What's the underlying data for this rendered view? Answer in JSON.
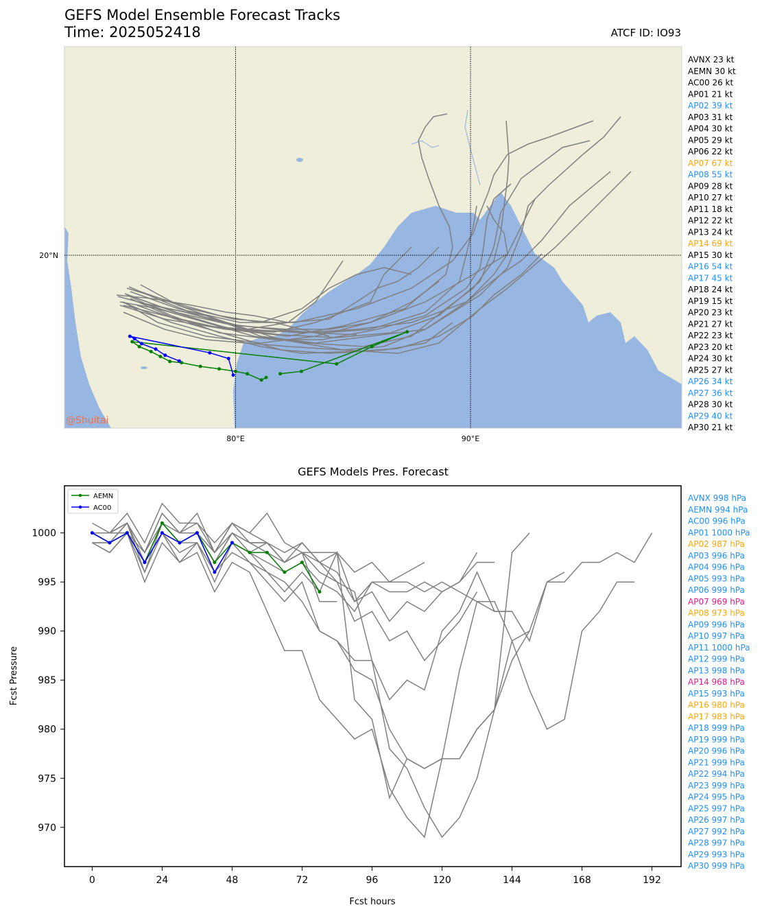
{
  "header": {
    "title": "GEFS Model Ensemble Forecast Tracks",
    "time": "Time: 2025052418",
    "atcf": "ATCF ID: IO93"
  },
  "map": {
    "lat_label": "20°N",
    "lon_labels": [
      "80°E",
      "90°E"
    ],
    "watermark": "@Shuitai",
    "colors": {
      "land": "#efeedb",
      "ocean": "#98b6e2",
      "track": "#808080",
      "aemn": "#008000",
      "ac00": "#0000ff",
      "watermark": "#e8734d"
    },
    "tracks": {
      "AEMN": [
        [
          81.3,
          15.05
        ],
        [
          81.1,
          14.95
        ],
        [
          80.5,
          15.2
        ],
        [
          80.0,
          15.3
        ],
        [
          79.3,
          15.4
        ],
        [
          78.5,
          15.5
        ],
        [
          77.7,
          15.65
        ],
        [
          77.2,
          15.7
        ],
        [
          76.8,
          15.9
        ],
        [
          76.4,
          16.1
        ],
        [
          75.9,
          16.3
        ],
        [
          75.6,
          16.5
        ],
        [
          84.3,
          15.6
        ],
        [
          85.8,
          16.3
        ],
        [
          87.3,
          16.9
        ],
        [
          82.8,
          15.3
        ],
        [
          81.9,
          15.2
        ]
      ],
      "AC00": [
        [
          77.6,
          15.72
        ],
        [
          77.0,
          15.95
        ],
        [
          76.6,
          16.2
        ],
        [
          76.0,
          16.42
        ],
        [
          75.7,
          16.62
        ],
        [
          75.5,
          16.72
        ],
        [
          78.9,
          16.05
        ],
        [
          79.7,
          15.82
        ],
        [
          79.9,
          15.15
        ]
      ]
    }
  },
  "legend_top": [
    {
      "label": "AVNX 23 kt",
      "color": "#000000"
    },
    {
      "label": "AEMN 30 kt",
      "color": "#000000"
    },
    {
      "label": "AC00 26 kt",
      "color": "#000000"
    },
    {
      "label": "AP01 21 kt",
      "color": "#000000"
    },
    {
      "label": "AP02 39 kt",
      "color": "#1e90ff"
    },
    {
      "label": "AP03 31 kt",
      "color": "#000000"
    },
    {
      "label": "AP04 30 kt",
      "color": "#000000"
    },
    {
      "label": "AP05 29 kt",
      "color": "#000000"
    },
    {
      "label": "AP06 22 kt",
      "color": "#000000"
    },
    {
      "label": "AP07 67 kt",
      "color": "#ffa500"
    },
    {
      "label": "AP08 55 kt",
      "color": "#1e90ff"
    },
    {
      "label": "AP09 28 kt",
      "color": "#000000"
    },
    {
      "label": "AP10 27 kt",
      "color": "#000000"
    },
    {
      "label": "AP11 18 kt",
      "color": "#000000"
    },
    {
      "label": "AP12 22 kt",
      "color": "#000000"
    },
    {
      "label": "AP13 24 kt",
      "color": "#000000"
    },
    {
      "label": "AP14 69 kt",
      "color": "#ffa500"
    },
    {
      "label": "AP15 30 kt",
      "color": "#000000"
    },
    {
      "label": "AP16 54 kt",
      "color": "#1e90ff"
    },
    {
      "label": "AP17 45 kt",
      "color": "#1e90ff"
    },
    {
      "label": "AP18 24 kt",
      "color": "#000000"
    },
    {
      "label": "AP19 15 kt",
      "color": "#000000"
    },
    {
      "label": "AP20 23 kt",
      "color": "#000000"
    },
    {
      "label": "AP21 27 kt",
      "color": "#000000"
    },
    {
      "label": "AP22 23 kt",
      "color": "#000000"
    },
    {
      "label": "AP23 20 kt",
      "color": "#000000"
    },
    {
      "label": "AP24 30 kt",
      "color": "#000000"
    },
    {
      "label": "AP25 27 kt",
      "color": "#000000"
    },
    {
      "label": "AP26 34 kt",
      "color": "#1e90ff"
    },
    {
      "label": "AP27 36 kt",
      "color": "#1e90ff"
    },
    {
      "label": "AP28 30 kt",
      "color": "#000000"
    },
    {
      "label": "AP29 40 kt",
      "color": "#1e90ff"
    },
    {
      "label": "AP30 21 kt",
      "color": "#000000"
    }
  ],
  "legend_bottom": [
    {
      "label": "AVNX 998 hPa",
      "color": "#1e90ff"
    },
    {
      "label": "AEMN 994 hPa",
      "color": "#1e90ff"
    },
    {
      "label": "AC00 996 hPa",
      "color": "#1e90ff"
    },
    {
      "label": "AP01 1000 hPa",
      "color": "#1e90ff"
    },
    {
      "label": "AP02 987 hPa",
      "color": "#ffa500"
    },
    {
      "label": "AP03 996 hPa",
      "color": "#1e90ff"
    },
    {
      "label": "AP04 996 hPa",
      "color": "#1e90ff"
    },
    {
      "label": "AP05 993 hPa",
      "color": "#1e90ff"
    },
    {
      "label": "AP06 999 hPa",
      "color": "#1e90ff"
    },
    {
      "label": "AP07 969 hPa",
      "color": "#e6198c"
    },
    {
      "label": "AP08 973 hPa",
      "color": "#ffa500"
    },
    {
      "label": "AP09 996 hPa",
      "color": "#1e90ff"
    },
    {
      "label": "AP10 997 hPa",
      "color": "#1e90ff"
    },
    {
      "label": "AP11 1000 hPa",
      "color": "#1e90ff"
    },
    {
      "label": "AP12 999 hPa",
      "color": "#1e90ff"
    },
    {
      "label": "AP13 998 hPa",
      "color": "#1e90ff"
    },
    {
      "label": "AP14 968 hPa",
      "color": "#e6198c"
    },
    {
      "label": "AP15 993 hPa",
      "color": "#1e90ff"
    },
    {
      "label": "AP16 980 hPa",
      "color": "#ffa500"
    },
    {
      "label": "AP17 983 hPa",
      "color": "#ffa500"
    },
    {
      "label": "AP18 999 hPa",
      "color": "#1e90ff"
    },
    {
      "label": "AP19 999 hPa",
      "color": "#1e90ff"
    },
    {
      "label": "AP20 996 hPa",
      "color": "#1e90ff"
    },
    {
      "label": "AP21 999 hPa",
      "color": "#1e90ff"
    },
    {
      "label": "AP22 994 hPa",
      "color": "#1e90ff"
    },
    {
      "label": "AP23 999 hPa",
      "color": "#1e90ff"
    },
    {
      "label": "AP24 995 hPa",
      "color": "#1e90ff"
    },
    {
      "label": "AP25 997 hPa",
      "color": "#1e90ff"
    },
    {
      "label": "AP26 997 hPa",
      "color": "#1e90ff"
    },
    {
      "label": "AP27 992 hPa",
      "color": "#1e90ff"
    },
    {
      "label": "AP28 997 hPa",
      "color": "#1e90ff"
    },
    {
      "label": "AP29 993 hPa",
      "color": "#1e90ff"
    },
    {
      "label": "AP30 999 hPa",
      "color": "#1e90ff"
    }
  ],
  "chart_data": {
    "type": "line",
    "title": "GEFS Models Pres. Forecast",
    "xlabel": "Fcst hours",
    "ylabel": "Fcst Pressure",
    "xlim": [
      -9.5,
      202
    ],
    "ylim": [
      966,
      1004.8
    ],
    "xticks": [
      0,
      24,
      48,
      72,
      96,
      120,
      144,
      168,
      192
    ],
    "yticks": [
      970,
      975,
      980,
      985,
      990,
      995,
      1000
    ],
    "legend": [
      "AEMN",
      "AC00"
    ],
    "legend_placement": "top-left",
    "highlight_series": [
      {
        "name": "AEMN",
        "color": "#008000",
        "x": [
          0,
          6,
          12,
          18,
          24,
          30,
          36,
          42,
          48,
          54,
          60,
          66,
          72,
          78
        ],
        "y": [
          1000,
          999,
          1000,
          997,
          1001,
          999,
          1000,
          997,
          999,
          998,
          998,
          996,
          997,
          994
        ]
      },
      {
        "name": "AC00",
        "color": "#0000ff",
        "x": [
          0,
          6,
          12,
          18,
          24,
          30,
          36,
          42,
          48
        ],
        "y": [
          1000,
          999,
          1000,
          997,
          1000,
          999,
          1000,
          996,
          999
        ]
      }
    ],
    "series": [
      {
        "x": [
          0,
          6,
          12,
          18,
          24,
          30,
          36,
          42,
          48,
          54,
          60,
          66,
          72,
          78,
          84,
          90,
          96,
          102,
          108,
          114,
          120,
          126,
          132
        ],
        "y": [
          1000,
          1000,
          1001,
          998,
          1002,
          1000,
          1001,
          998,
          1000,
          999,
          999,
          997,
          998,
          996,
          995,
          991,
          992,
          989,
          990,
          987,
          989,
          991,
          994
        ]
      },
      {
        "x": [
          0,
          6,
          12,
          18,
          24,
          30,
          36,
          42,
          48,
          54,
          60,
          66,
          72,
          78,
          84,
          90,
          96,
          102,
          108,
          114,
          120,
          126,
          132,
          138,
          144
        ],
        "y": [
          999,
          999,
          1000,
          996,
          1000,
          998,
          999,
          995,
          999,
          998,
          996,
          995,
          993,
          990,
          989,
          987,
          987,
          983,
          985,
          984,
          990,
          992,
          996,
          992,
          992
        ]
      },
      {
        "x": [
          0,
          6,
          12,
          18,
          24,
          30,
          36,
          42,
          48,
          54,
          60,
          66,
          72,
          78,
          84,
          90,
          96,
          102,
          108,
          114,
          120,
          126,
          132,
          138,
          144,
          150,
          156,
          162
        ],
        "y": [
          1001,
          1000,
          1002,
          999,
          1003,
          1001,
          1001,
          999,
          1001,
          1000,
          999,
          998,
          999,
          997,
          995,
          994,
          987,
          978,
          976,
          972,
          969,
          971,
          975,
          982,
          987,
          990,
          995,
          996
        ]
      },
      {
        "x": [
          0,
          6,
          12,
          18,
          24,
          30,
          36,
          42,
          48,
          54,
          60,
          66,
          72,
          78,
          84,
          90,
          96,
          102,
          108,
          114,
          120,
          126,
          132,
          138,
          144,
          150
        ],
        "y": [
          999,
          998,
          1000,
          995,
          999,
          997,
          998,
          994,
          997,
          996,
          992,
          988,
          988,
          983,
          981,
          979,
          980,
          974,
          971,
          969,
          977,
          977,
          980,
          982,
          989,
          990
        ]
      },
      {
        "x": [
          0,
          6,
          12,
          18,
          24,
          30,
          36,
          42,
          48,
          54,
          60,
          66,
          72,
          78,
          84,
          90,
          96,
          102,
          108,
          114,
          120,
          126,
          132,
          138,
          144,
          150,
          156,
          162,
          168,
          174,
          180,
          186
        ],
        "y": [
          999,
          999,
          1001,
          997,
          1001,
          999,
          1000,
          996,
          998,
          997,
          995,
          993,
          995,
          990,
          989,
          986,
          985,
          980,
          977,
          976,
          977,
          986,
          993,
          993,
          989,
          984,
          980,
          981,
          990,
          992,
          995,
          995
        ]
      },
      {
        "x": [
          0,
          6,
          12,
          18,
          24,
          30,
          36,
          42,
          48,
          54,
          60,
          66,
          72,
          78,
          84,
          90,
          96,
          102,
          108,
          114,
          120,
          126,
          132,
          138
        ],
        "y": [
          1000,
          1000,
          1001,
          996,
          1001,
          999,
          1000,
          997,
          1000,
          998,
          999,
          997,
          999,
          997,
          996,
          993,
          994,
          991,
          993,
          992,
          994,
          995,
          997,
          997
        ]
      },
      {
        "x": [
          0,
          6,
          12,
          18,
          24,
          30,
          36,
          42,
          48,
          54,
          60,
          66,
          72,
          78,
          84,
          90,
          96,
          102,
          108,
          114,
          120,
          126,
          132
        ],
        "y": [
          1000,
          999,
          1001,
          997,
          1000,
          999,
          999,
          996,
          999,
          998,
          997,
          996,
          997,
          995,
          994,
          992,
          995,
          994,
          994,
          995,
          994,
          995,
          998
        ]
      },
      {
        "x": [
          0,
          6,
          12,
          18,
          24,
          30,
          36,
          42,
          48,
          54,
          60,
          66,
          72,
          78,
          84
        ],
        "y": [
          1000,
          1000,
          1000,
          998,
          1002,
          1000,
          1002,
          998,
          1001,
          999,
          998,
          997,
          998,
          993,
          993
        ]
      },
      {
        "x": [
          0,
          6,
          12,
          18,
          24,
          30,
          36,
          42,
          48,
          54,
          60,
          66,
          72,
          78,
          84,
          90,
          96,
          102,
          108,
          114
        ],
        "y": [
          1000,
          999,
          1000,
          997,
          1001,
          1000,
          1000,
          997,
          1000,
          999,
          999,
          997,
          998,
          997,
          998,
          996,
          997,
          995,
          996,
          997
        ]
      },
      {
        "x": [
          0,
          6,
          12,
          18,
          24,
          30,
          36,
          42,
          48,
          54,
          60,
          66,
          72,
          78,
          84,
          90,
          96,
          102,
          108,
          114,
          120,
          126,
          132,
          138,
          144,
          150,
          156,
          162,
          168,
          174,
          180,
          186,
          192
        ],
        "y": [
          1000,
          1000,
          1001,
          998,
          1001,
          999,
          1000,
          998,
          1001,
          1000,
          1002,
          999,
          998,
          998,
          998,
          993,
          995,
          995,
          995,
          994,
          995,
          994,
          993,
          992,
          992,
          989,
          995,
          995,
          997,
          997,
          998,
          997,
          1000
        ]
      },
      {
        "x": [
          0,
          6,
          12,
          18,
          24,
          30,
          36,
          42,
          48,
          54,
          60,
          66,
          72,
          78,
          84,
          90,
          96,
          102,
          108,
          114,
          120,
          126,
          132,
          138,
          144,
          150
        ],
        "y": [
          999,
          998,
          1000,
          997,
          1000,
          997,
          999,
          996,
          999,
          997,
          996,
          994,
          996,
          994,
          998,
          983,
          981,
          973,
          977,
          976,
          977,
          977,
          980,
          982,
          998,
          1000
        ]
      }
    ]
  }
}
